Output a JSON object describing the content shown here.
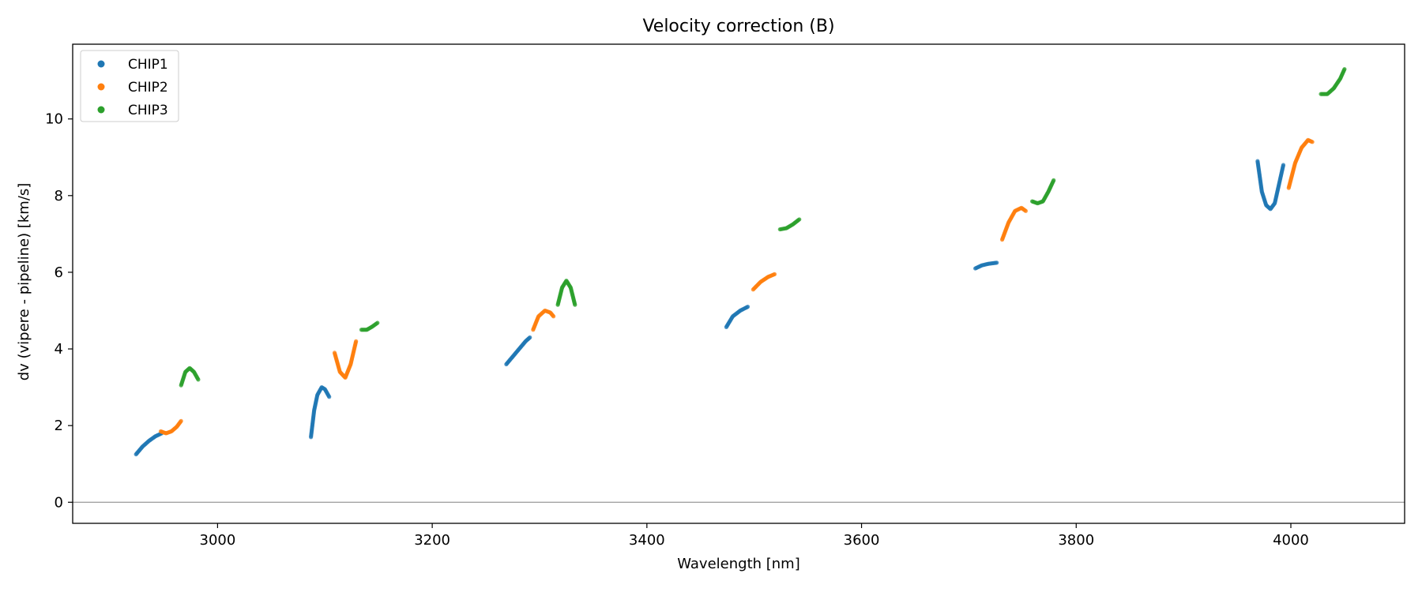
{
  "chart_data": {
    "type": "scatter",
    "title": "Velocity correction (B)",
    "xlabel": "Wavelength [nm]",
    "ylabel": "dv (vipere - pipeline) [km/s]",
    "xlim": [
      2865,
      4106
    ],
    "ylim": [
      -0.55,
      11.95
    ],
    "xticks": [
      3000,
      3200,
      3400,
      3600,
      3800,
      4000
    ],
    "yticks": [
      0,
      2,
      4,
      6,
      8,
      10
    ],
    "grid": false,
    "reference_line": {
      "y": 0,
      "color": "#808080"
    },
    "legend": {
      "placement": "top-left",
      "entries": [
        "CHIP1",
        "CHIP2",
        "CHIP3"
      ]
    },
    "colors": {
      "CHIP1": "#1f77b4",
      "CHIP2": "#ff7f0e",
      "CHIP3": "#2ca02c"
    },
    "series": [
      {
        "name": "CHIP1",
        "segments": [
          {
            "x": [
              2924,
              2930,
              2936,
              2942,
              2948
            ],
            "y": [
              1.25,
              1.45,
              1.6,
              1.72,
              1.8
            ]
          },
          {
            "x": [
              3087,
              3090,
              3093,
              3097,
              3100,
              3104
            ],
            "y": [
              1.7,
              2.4,
              2.8,
              3.0,
              2.95,
              2.75
            ]
          },
          {
            "x": [
              3269,
              3275,
              3281,
              3287,
              3291
            ],
            "y": [
              3.6,
              3.8,
              4.0,
              4.2,
              4.3
            ]
          },
          {
            "x": [
              3474,
              3480,
              3487,
              3494
            ],
            "y": [
              4.57,
              4.85,
              5.0,
              5.1
            ]
          },
          {
            "x": [
              3706,
              3712,
              3718,
              3726
            ],
            "y": [
              6.1,
              6.18,
              6.22,
              6.25
            ]
          },
          {
            "x": [
              3969,
              3973,
              3977,
              3981,
              3985,
              3989,
              3993
            ],
            "y": [
              8.9,
              8.1,
              7.75,
              7.65,
              7.8,
              8.3,
              8.8
            ]
          }
        ]
      },
      {
        "name": "CHIP2",
        "segments": [
          {
            "x": [
              2947,
              2952,
              2957,
              2962,
              2966
            ],
            "y": [
              1.85,
              1.8,
              1.85,
              1.97,
              2.12
            ]
          },
          {
            "x": [
              3109,
              3114,
              3119,
              3124,
              3129
            ],
            "y": [
              3.9,
              3.4,
              3.25,
              3.6,
              4.2
            ]
          },
          {
            "x": [
              3294,
              3299,
              3305,
              3310,
              3313
            ],
            "y": [
              4.5,
              4.85,
              5.0,
              4.95,
              4.85
            ]
          },
          {
            "x": [
              3499,
              3506,
              3513,
              3519
            ],
            "y": [
              5.55,
              5.75,
              5.88,
              5.95
            ]
          },
          {
            "x": [
              3731,
              3737,
              3743,
              3749,
              3753
            ],
            "y": [
              6.85,
              7.3,
              7.6,
              7.68,
              7.6
            ]
          },
          {
            "x": [
              3998,
              4004,
              4010,
              4016,
              4020
            ],
            "y": [
              8.2,
              8.85,
              9.25,
              9.45,
              9.4
            ]
          }
        ]
      },
      {
        "name": "CHIP3",
        "segments": [
          {
            "x": [
              2966,
              2970,
              2974,
              2978,
              2982
            ],
            "y": [
              3.05,
              3.4,
              3.5,
              3.4,
              3.2
            ]
          },
          {
            "x": [
              3134,
              3139,
              3144,
              3149
            ],
            "y": [
              4.5,
              4.5,
              4.58,
              4.68
            ]
          },
          {
            "x": [
              3317,
              3321,
              3325,
              3329,
              3333
            ],
            "y": [
              5.15,
              5.6,
              5.78,
              5.6,
              5.15
            ]
          },
          {
            "x": [
              3524,
              3530,
              3536,
              3542
            ],
            "y": [
              7.12,
              7.15,
              7.25,
              7.38
            ]
          },
          {
            "x": [
              3759,
              3764,
              3769,
              3774,
              3779
            ],
            "y": [
              7.85,
              7.8,
              7.85,
              8.1,
              8.4
            ]
          },
          {
            "x": [
              4028,
              4034,
              4040,
              4046,
              4050
            ],
            "y": [
              10.65,
              10.65,
              10.8,
              11.05,
              11.3
            ]
          }
        ]
      }
    ]
  }
}
